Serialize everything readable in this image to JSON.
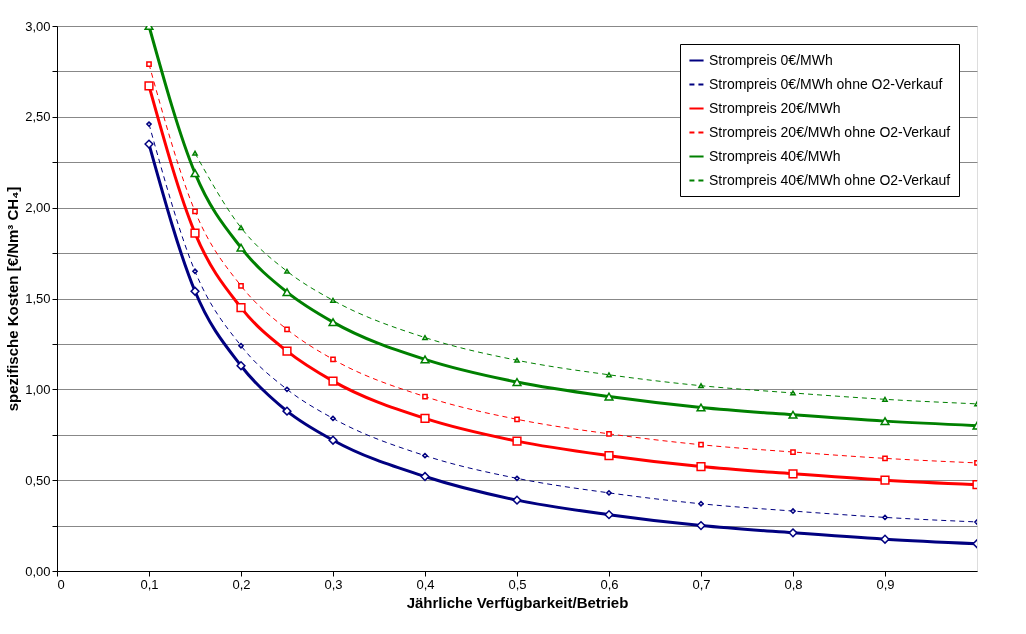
{
  "chart_data": {
    "type": "line",
    "xlabel": "Jährliche Verfügbarkeit/Betrieb",
    "ylabel": "spezifische Kosten [€/Nm³ CH₄]",
    "x": [
      0.1,
      0.15,
      0.2,
      0.25,
      0.3,
      0.4,
      0.5,
      0.6,
      0.7,
      0.8,
      0.9,
      1.0
    ],
    "series": [
      {
        "name": "Strompreis 0€/MWh",
        "color": "#000080",
        "marker": "diamond",
        "line_style": "solid",
        "values": [
          2.35,
          1.54,
          1.13,
          0.88,
          0.72,
          0.52,
          0.39,
          0.31,
          0.25,
          0.21,
          0.175,
          0.15
        ]
      },
      {
        "name": "Strompreis 0€/MWh ohne O2-Verkauf",
        "color": "#000080",
        "marker": "diamond",
        "line_style": "dashed",
        "values": [
          2.46,
          1.65,
          1.24,
          1.0,
          0.84,
          0.635,
          0.51,
          0.43,
          0.37,
          0.33,
          0.295,
          0.27
        ]
      },
      {
        "name": "Strompreis 20€/MWh",
        "color": "#ff0000",
        "marker": "square",
        "line_style": "solid",
        "values": [
          2.67,
          1.86,
          1.45,
          1.21,
          1.045,
          0.84,
          0.715,
          0.635,
          0.575,
          0.535,
          0.5,
          0.475
        ]
      },
      {
        "name": "Strompreis 20€/MWh ohne O2-Verkauf",
        "color": "#ff0000",
        "marker": "square",
        "line_style": "dashed",
        "values": [
          2.79,
          1.98,
          1.57,
          1.33,
          1.165,
          0.96,
          0.835,
          0.755,
          0.695,
          0.655,
          0.62,
          0.595
        ]
      },
      {
        "name": "Strompreis 40€/MWh",
        "color": "#008000",
        "marker": "triangle",
        "line_style": "solid",
        "values": [
          3.0,
          2.19,
          1.78,
          1.535,
          1.37,
          1.165,
          1.04,
          0.96,
          0.9,
          0.86,
          0.825,
          0.8
        ]
      },
      {
        "name": "Strompreis 40€/MWh ohne O2-Verkauf",
        "color": "#008000",
        "marker": "triangle",
        "line_style": "dashed",
        "values": [
          null,
          2.3,
          1.89,
          1.65,
          1.49,
          1.285,
          1.16,
          1.08,
          1.02,
          0.98,
          0.945,
          0.92
        ]
      }
    ],
    "xlim": [
      0,
      1
    ],
    "xticks": [
      {
        "value": 0,
        "label": "0"
      },
      {
        "value": 0.1,
        "label": "0,1"
      },
      {
        "value": 0.2,
        "label": "0,2"
      },
      {
        "value": 0.3,
        "label": "0,3"
      },
      {
        "value": 0.4,
        "label": "0,4"
      },
      {
        "value": 0.5,
        "label": "0,5"
      },
      {
        "value": 0.6,
        "label": "0,6"
      },
      {
        "value": 0.7,
        "label": "0,7"
      },
      {
        "value": 0.8,
        "label": "0,8"
      },
      {
        "value": 0.9,
        "label": "0,9"
      }
    ],
    "ylim": [
      0,
      3
    ],
    "yticks": [
      {
        "value": 0,
        "label": "0,00"
      },
      {
        "value": 0.25,
        "label": null
      },
      {
        "value": 0.5,
        "label": "0,50"
      },
      {
        "value": 0.75,
        "label": null
      },
      {
        "value": 1.0,
        "label": "1,00"
      },
      {
        "value": 1.25,
        "label": null
      },
      {
        "value": 1.5,
        "label": "1,50"
      },
      {
        "value": 1.75,
        "label": null
      },
      {
        "value": 2.0,
        "label": "2,00"
      },
      {
        "value": 2.25,
        "label": null
      },
      {
        "value": 2.5,
        "label": "2,50"
      },
      {
        "value": 2.75,
        "label": null
      },
      {
        "value": 3.0,
        "label": "3,00"
      }
    ],
    "grid": "y",
    "legend": "top right"
  }
}
